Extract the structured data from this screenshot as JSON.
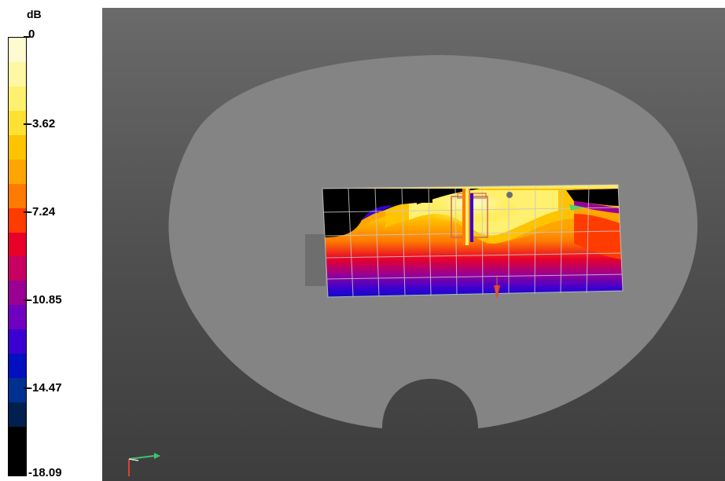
{
  "legend": {
    "unit": "dB",
    "ticks": [
      "0",
      "-3.62",
      "-7.24",
      "-10.85",
      "-14.47",
      "-18.09"
    ],
    "colors": [
      "#fffbd0",
      "#fff7a4",
      "#fff070",
      "#ffe133",
      "#ffc300",
      "#ffa500",
      "#ff7a00",
      "#ff3c00",
      "#e8002a",
      "#c80062",
      "#9a0094",
      "#7000c0",
      "#3a00d2",
      "#0010c0",
      "#003090",
      "#012050",
      "#000000",
      "#000000"
    ]
  },
  "viewport": {
    "background_colors": [
      "#6a6a6a",
      "#3d3d3d"
    ],
    "room_color": "#848484",
    "grid_color": "#c8c8c8",
    "axis_icon": "axis-triad-icon",
    "source_icon": "sound-source-icon",
    "receiver_icon": "receiver-marker-icon"
  }
}
